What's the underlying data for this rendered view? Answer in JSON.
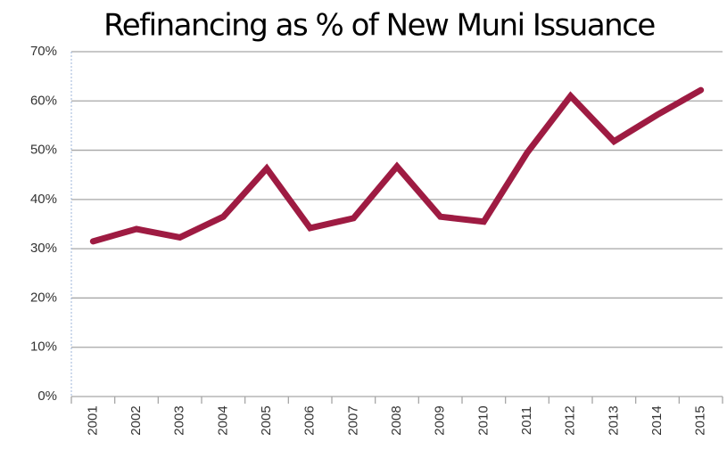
{
  "chart_data": {
    "type": "line",
    "title": "Refinancing as % of New Muni Issuance",
    "categories": [
      "2001",
      "2002",
      "2003",
      "2004",
      "2005",
      "2006",
      "2007",
      "2008",
      "2009",
      "2010",
      "2011",
      "2012",
      "2013",
      "2014",
      "2015"
    ],
    "series": [
      {
        "name": "Refinancing",
        "color": "#9e1b42",
        "values": [
          31.5,
          34,
          32.3,
          36.5,
          46.3,
          34.2,
          36.2,
          46.7,
          36.5,
          35.5,
          49.5,
          61,
          51.8,
          57.2,
          62.2
        ]
      }
    ],
    "ylim": [
      0,
      70
    ],
    "yticks": [
      {
        "value": 0,
        "label": "0%"
      },
      {
        "value": 10,
        "label": "10%"
      },
      {
        "value": 20,
        "label": "20%"
      },
      {
        "value": 30,
        "label": "30%"
      },
      {
        "value": 40,
        "label": "40%"
      },
      {
        "value": 50,
        "label": "50%"
      },
      {
        "value": 60,
        "label": "60%"
      },
      {
        "value": 70,
        "label": "70%"
      }
    ],
    "grid": true
  }
}
